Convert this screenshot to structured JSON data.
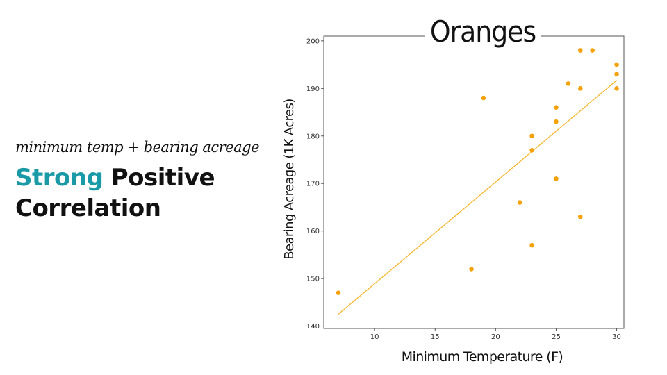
{
  "slide": {
    "subtitle": "minimum temp + bearing acreage",
    "headline_accent": "Strong",
    "headline_rest": " Positive Correlation"
  },
  "colors": {
    "accent": "#1a9aa6",
    "points": "#f5a20a",
    "fit_line": "#f7b52c"
  },
  "chart_data": {
    "type": "scatter",
    "title": "Oranges",
    "xlabel": "Minimum Temperature (F)",
    "ylabel": "Bearing Acreage (1K Acres)",
    "xlim": [
      5.8,
      30.6
    ],
    "ylim": [
      139.5,
      201
    ],
    "xticks": [
      10,
      15,
      20,
      25,
      30
    ],
    "yticks": [
      140,
      150,
      160,
      170,
      180,
      190,
      200
    ],
    "grid": false,
    "points": [
      {
        "x": 7,
        "y": 147
      },
      {
        "x": 18,
        "y": 152
      },
      {
        "x": 19,
        "y": 188
      },
      {
        "x": 22,
        "y": 166
      },
      {
        "x": 23,
        "y": 157
      },
      {
        "x": 23,
        "y": 177
      },
      {
        "x": 23,
        "y": 180
      },
      {
        "x": 25,
        "y": 171
      },
      {
        "x": 25,
        "y": 183
      },
      {
        "x": 25,
        "y": 186
      },
      {
        "x": 26,
        "y": 191
      },
      {
        "x": 27,
        "y": 163
      },
      {
        "x": 27,
        "y": 190
      },
      {
        "x": 27,
        "y": 198
      },
      {
        "x": 28,
        "y": 198
      },
      {
        "x": 30,
        "y": 190
      },
      {
        "x": 30,
        "y": 193
      },
      {
        "x": 30,
        "y": 195
      }
    ],
    "trendline": [
      {
        "x": 7,
        "y": 142.5
      },
      {
        "x": 30,
        "y": 191.7
      }
    ]
  }
}
